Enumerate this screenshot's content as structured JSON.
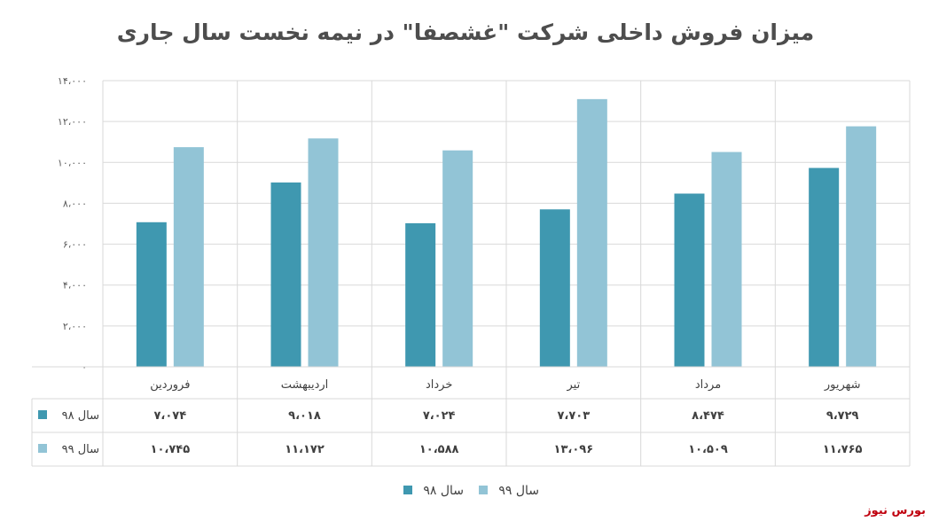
{
  "chart_data": {
    "type": "bar",
    "title": "میزان فروش داخلی شرکت \"غشصفا\" در نیمه نخست سال جاری",
    "categories": [
      "فروردین",
      "اردیبهشت",
      "خرداد",
      "تیر",
      "مرداد",
      "شهریور"
    ],
    "series": [
      {
        "name": "سال ۹۸",
        "color": "#3f98b0",
        "values": [
          7074,
          9018,
          7024,
          7703,
          8474,
          9729
        ],
        "labels": [
          "۷،۰۷۴",
          "۹،۰۱۸",
          "۷،۰۲۴",
          "۷،۷۰۳",
          "۸،۴۷۴",
          "۹،۷۲۹"
        ]
      },
      {
        "name": "سال ۹۹",
        "color": "#92c4d6",
        "values": [
          10745,
          11172,
          10588,
          13096,
          10509,
          11765
        ],
        "labels": [
          "۱۰،۷۴۵",
          "۱۱،۱۷۲",
          "۱۰،۵۸۸",
          "۱۳،۰۹۶",
          "۱۰،۵۰۹",
          "۱۱،۷۶۵"
        ]
      }
    ],
    "ylim": [
      0,
      14000
    ],
    "yticks": [
      0,
      2000,
      4000,
      6000,
      8000,
      10000,
      12000,
      14000
    ],
    "ytick_labels": [
      "۰",
      "۲،۰۰۰",
      "۴،۰۰۰",
      "۶،۰۰۰",
      "۸،۰۰۰",
      "۱۰،۰۰۰",
      "۱۲،۰۰۰",
      "۱۴،۰۰۰"
    ],
    "grid": true,
    "legend": "bottom",
    "data_table": true
  },
  "source": "بورس نیوز"
}
